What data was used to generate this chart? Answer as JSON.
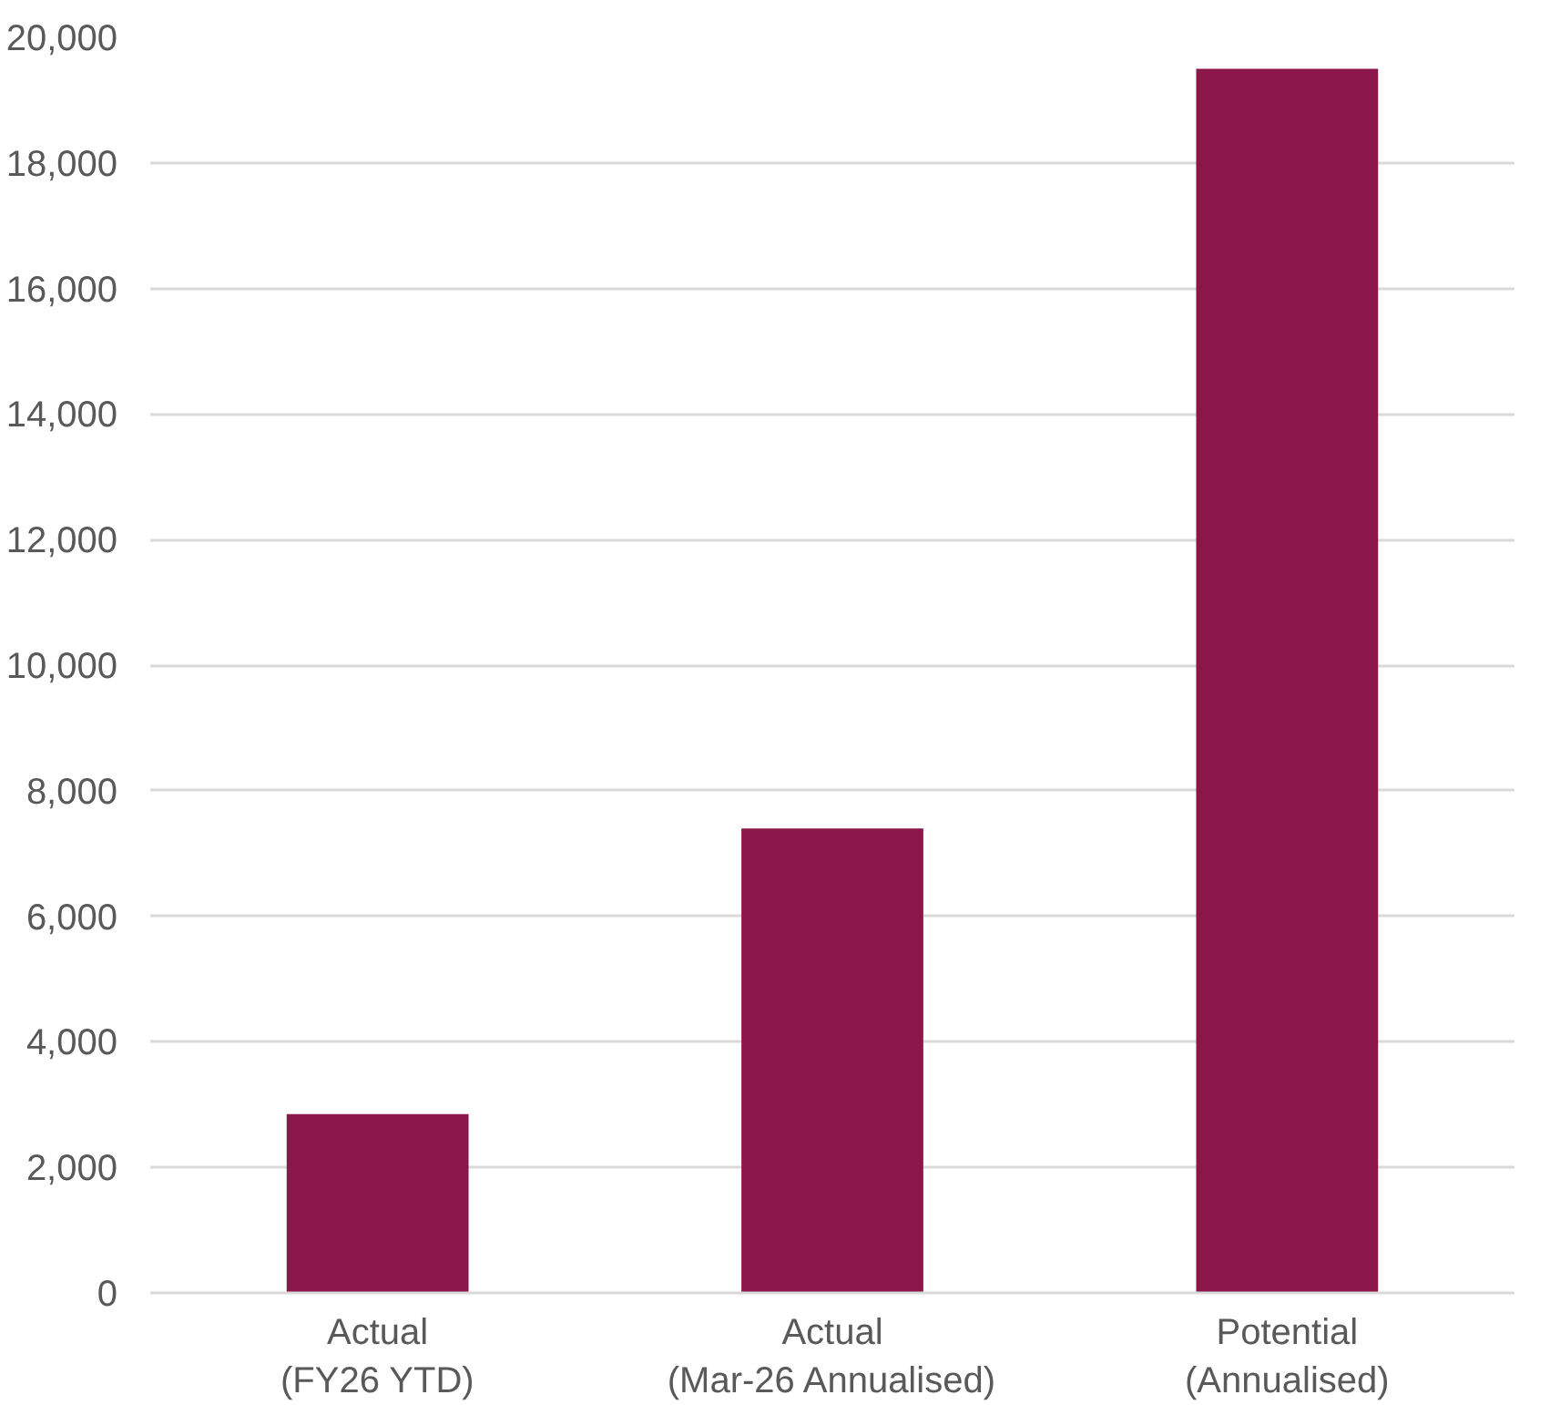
{
  "chart_data": {
    "type": "bar",
    "categories": [
      "Actual\n(FY26 YTD)",
      "Actual\n(Mar-26 Annualised)",
      "Potential\n(Annualised)"
    ],
    "values": [
      2850,
      7400,
      19500
    ],
    "color": "#8b174a",
    "ylim": [
      0,
      20000
    ],
    "yticks": [
      {
        "value": 0,
        "label": "0"
      },
      {
        "value": 2000,
        "label": "2,000"
      },
      {
        "value": 4000,
        "label": "4,000"
      },
      {
        "value": 6000,
        "label": "6,000"
      },
      {
        "value": 8000,
        "label": "8,000"
      },
      {
        "value": 10000,
        "label": "10,000"
      },
      {
        "value": 12000,
        "label": "12,000"
      },
      {
        "value": 14000,
        "label": "14,000"
      },
      {
        "value": 16000,
        "label": "16,000"
      },
      {
        "value": 18000,
        "label": "18,000"
      },
      {
        "value": 20000,
        "label": "20,000"
      }
    ],
    "grid": "y"
  }
}
